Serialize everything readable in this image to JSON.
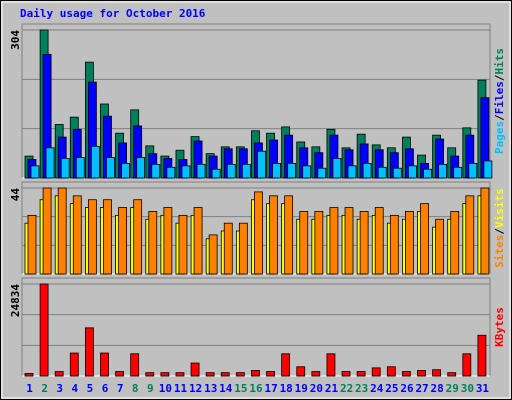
{
  "chart_data": {
    "type": "bar",
    "title": "Daily usage for October 2016",
    "categories": [
      "1",
      "2",
      "3",
      "4",
      "5",
      "6",
      "7",
      "8",
      "9",
      "10",
      "11",
      "12",
      "13",
      "14",
      "15",
      "16",
      "17",
      "18",
      "19",
      "20",
      "21",
      "22",
      "23",
      "24",
      "25",
      "26",
      "27",
      "28",
      "29",
      "30",
      "31"
    ],
    "category_colors": [
      "#0000ff",
      "#00805c",
      "#0000ff",
      "#0000ff",
      "#0000ff",
      "#0000ff",
      "#0000ff",
      "#00805c",
      "#00805c",
      "#0000ff",
      "#0000ff",
      "#0000ff",
      "#0000ff",
      "#0000ff",
      "#00805c",
      "#00805c",
      "#0000ff",
      "#0000ff",
      "#0000ff",
      "#0000ff",
      "#0000ff",
      "#00805c",
      "#00805c",
      "#0000ff",
      "#0000ff",
      "#0000ff",
      "#0000ff",
      "#0000ff",
      "#00805c",
      "#00805c",
      "#0000ff"
    ],
    "legend_separator": "/",
    "panels": [
      {
        "ylim": [
          0,
          304
        ],
        "yticks": [
          304
        ],
        "series": [
          {
            "name": "Pages",
            "color": "#00c0ff",
            "values": [
              25,
              62,
              40,
              42,
              65,
              42,
              30,
              42,
              28,
              22,
              25,
              28,
              18,
              28,
              28,
              55,
              30,
              30,
              25,
              20,
              40,
              25,
              30,
              22,
              20,
              25,
              18,
              28,
              22,
              30,
              35
            ]
          },
          {
            "name": "Files",
            "color": "#0000ff",
            "values": [
              38,
              254,
              84,
              100,
              197,
              127,
              72,
              107,
              50,
              40,
              38,
              76,
              45,
              60,
              60,
              72,
              78,
              88,
              62,
              52,
              88,
              58,
              70,
              58,
              52,
              60,
              30,
              80,
              45,
              88,
              165
            ]
          },
          {
            "name": "Hits",
            "color": "#00805c",
            "values": [
              45,
              304,
              110,
              125,
              238,
              152,
              92,
              140,
              66,
              45,
              57,
              85,
              50,
              64,
              64,
              97,
              92,
              105,
              74,
              64,
              100,
              62,
              90,
              68,
              62,
              84,
              47,
              88,
              62,
              103,
              201
            ]
          }
        ]
      },
      {
        "ylim": [
          0,
          44
        ],
        "yticks": [
          44
        ],
        "series": [
          {
            "name": "Sites",
            "color": "#ff8000",
            "values": [
              30,
              44,
              44,
              40,
              38,
              38,
              34,
              38,
              32,
              34,
              30,
              34,
              20,
              26,
              26,
              42,
              40,
              40,
              32,
              32,
              34,
              34,
              32,
              34,
              30,
              32,
              36,
              28,
              32,
              40,
              44
            ]
          },
          {
            "name": "Visits",
            "color": "#ffff00",
            "values": [
              26,
              38,
              40,
              36,
              34,
              34,
              30,
              34,
              28,
              30,
              26,
              30,
              18,
              22,
              22,
              38,
              36,
              36,
              28,
              28,
              30,
              30,
              28,
              30,
              26,
              28,
              32,
              24,
              28,
              36,
              40
            ]
          }
        ]
      },
      {
        "ylim": [
          0,
          24834
        ],
        "yticks": [
          24834
        ],
        "series": [
          {
            "name": "KBytes",
            "color": "#ff0000",
            "values": [
              700,
              24834,
              1200,
              6200,
              13000,
              6200,
              1200,
              6000,
              900,
              900,
              900,
              3500,
              900,
              900,
              900,
              1500,
              1200,
              6000,
              2500,
              1200,
              6000,
              1200,
              1200,
              2200,
              2500,
              1200,
              1500,
              1700,
              900,
              6000,
              11000
            ]
          }
        ]
      }
    ]
  }
}
